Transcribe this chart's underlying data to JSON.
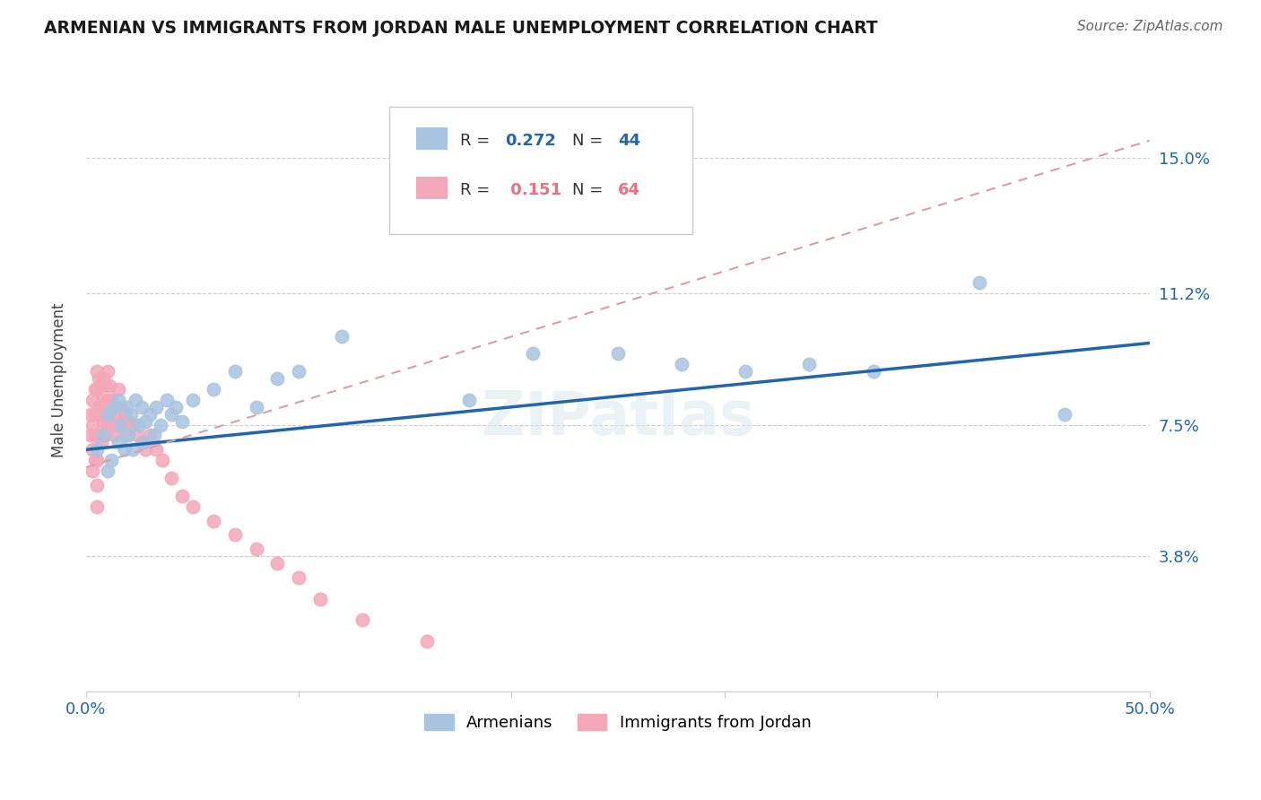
{
  "title": "ARMENIAN VS IMMIGRANTS FROM JORDAN MALE UNEMPLOYMENT CORRELATION CHART",
  "source": "Source: ZipAtlas.com",
  "ylabel": "Male Unemployment",
  "xlim": [
    0.0,
    0.5
  ],
  "ylim": [
    0.0,
    0.175
  ],
  "xticks": [
    0.0,
    0.1,
    0.2,
    0.3,
    0.4,
    0.5
  ],
  "xtick_labels": [
    "0.0%",
    "",
    "",
    "",
    "",
    "50.0%"
  ],
  "ytick_vals": [
    0.038,
    0.075,
    0.112,
    0.15
  ],
  "ytick_labels": [
    "3.8%",
    "7.5%",
    "11.2%",
    "15.0%"
  ],
  "armenian_R": 0.272,
  "armenian_N": 44,
  "jordan_R": 0.151,
  "jordan_N": 64,
  "armenian_color": "#a8c4e0",
  "jordan_color": "#f4a7b9",
  "armenian_line_color": "#2166ac",
  "jordan_line_color": "#d4a0a8",
  "armenian_x": [
    0.005,
    0.008,
    0.01,
    0.01,
    0.012,
    0.013,
    0.015,
    0.015,
    0.016,
    0.018,
    0.019,
    0.02,
    0.021,
    0.022,
    0.023,
    0.025,
    0.026,
    0.027,
    0.028,
    0.03,
    0.032,
    0.033,
    0.035,
    0.038,
    0.04,
    0.042,
    0.045,
    0.05,
    0.06,
    0.07,
    0.08,
    0.09,
    0.1,
    0.12,
    0.15,
    0.18,
    0.21,
    0.25,
    0.28,
    0.31,
    0.34,
    0.37,
    0.42,
    0.46
  ],
  "armenian_y": [
    0.068,
    0.072,
    0.062,
    0.078,
    0.065,
    0.08,
    0.07,
    0.082,
    0.075,
    0.068,
    0.08,
    0.072,
    0.078,
    0.068,
    0.082,
    0.075,
    0.08,
    0.07,
    0.076,
    0.078,
    0.072,
    0.08,
    0.075,
    0.082,
    0.078,
    0.08,
    0.076,
    0.082,
    0.085,
    0.09,
    0.08,
    0.088,
    0.09,
    0.1,
    0.138,
    0.082,
    0.095,
    0.095,
    0.092,
    0.09,
    0.092,
    0.09,
    0.115,
    0.078
  ],
  "jordan_x": [
    0.002,
    0.002,
    0.003,
    0.003,
    0.003,
    0.003,
    0.004,
    0.004,
    0.004,
    0.004,
    0.005,
    0.005,
    0.005,
    0.005,
    0.005,
    0.005,
    0.005,
    0.006,
    0.006,
    0.006,
    0.007,
    0.007,
    0.007,
    0.008,
    0.008,
    0.008,
    0.009,
    0.009,
    0.009,
    0.01,
    0.01,
    0.01,
    0.011,
    0.011,
    0.012,
    0.012,
    0.013,
    0.013,
    0.014,
    0.015,
    0.015,
    0.016,
    0.017,
    0.018,
    0.019,
    0.02,
    0.022,
    0.024,
    0.026,
    0.028,
    0.03,
    0.033,
    0.036,
    0.04,
    0.045,
    0.05,
    0.06,
    0.07,
    0.08,
    0.09,
    0.1,
    0.11,
    0.13,
    0.16
  ],
  "jordan_y": [
    0.078,
    0.072,
    0.082,
    0.075,
    0.068,
    0.062,
    0.085,
    0.078,
    0.072,
    0.065,
    0.09,
    0.085,
    0.078,
    0.072,
    0.065,
    0.058,
    0.052,
    0.088,
    0.08,
    0.072,
    0.086,
    0.078,
    0.07,
    0.088,
    0.082,
    0.075,
    0.086,
    0.08,
    0.072,
    0.09,
    0.082,
    0.075,
    0.086,
    0.078,
    0.082,
    0.075,
    0.08,
    0.072,
    0.078,
    0.085,
    0.075,
    0.08,
    0.076,
    0.078,
    0.072,
    0.076,
    0.075,
    0.072,
    0.07,
    0.068,
    0.072,
    0.068,
    0.065,
    0.06,
    0.055,
    0.052,
    0.048,
    0.044,
    0.04,
    0.036,
    0.032,
    0.026,
    0.02,
    0.014
  ],
  "arm_line_x0": 0.0,
  "arm_line_x1": 0.5,
  "arm_line_y0": 0.068,
  "arm_line_y1": 0.098,
  "jor_line_x0": 0.0,
  "jor_line_x1": 0.5,
  "jor_line_y0": 0.063,
  "jor_line_y1": 0.155,
  "watermark": "ZIPatlas"
}
